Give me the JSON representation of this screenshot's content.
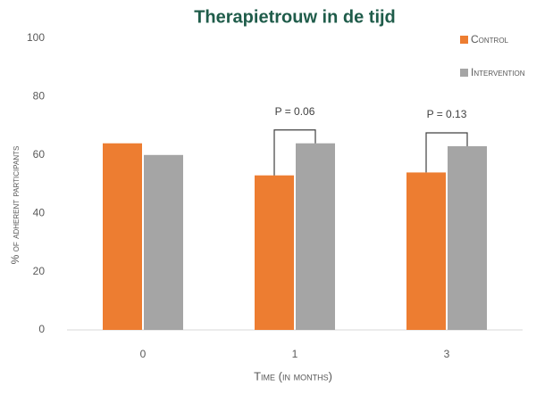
{
  "chart_data": {
    "type": "bar",
    "title": "Therapietrouw in de tijd",
    "x_label": "Time (in months)",
    "y_label": "% of adherent participants",
    "categories": [
      "0",
      "1",
      "3"
    ],
    "series": [
      {
        "name": "Control",
        "color": "#ed7d31",
        "values": [
          64,
          53,
          54
        ]
      },
      {
        "name": "Intervention",
        "color": "#a5a5a5",
        "values": [
          60,
          64,
          63
        ]
      }
    ],
    "ylim": [
      0,
      100
    ],
    "yticks": [
      0,
      20,
      40,
      60,
      80,
      100
    ],
    "grid": false,
    "legend": "top-right",
    "annotations": [
      {
        "text": "P = 0.06",
        "category": "1"
      },
      {
        "text": "P = 0.13",
        "category": "3"
      }
    ]
  }
}
